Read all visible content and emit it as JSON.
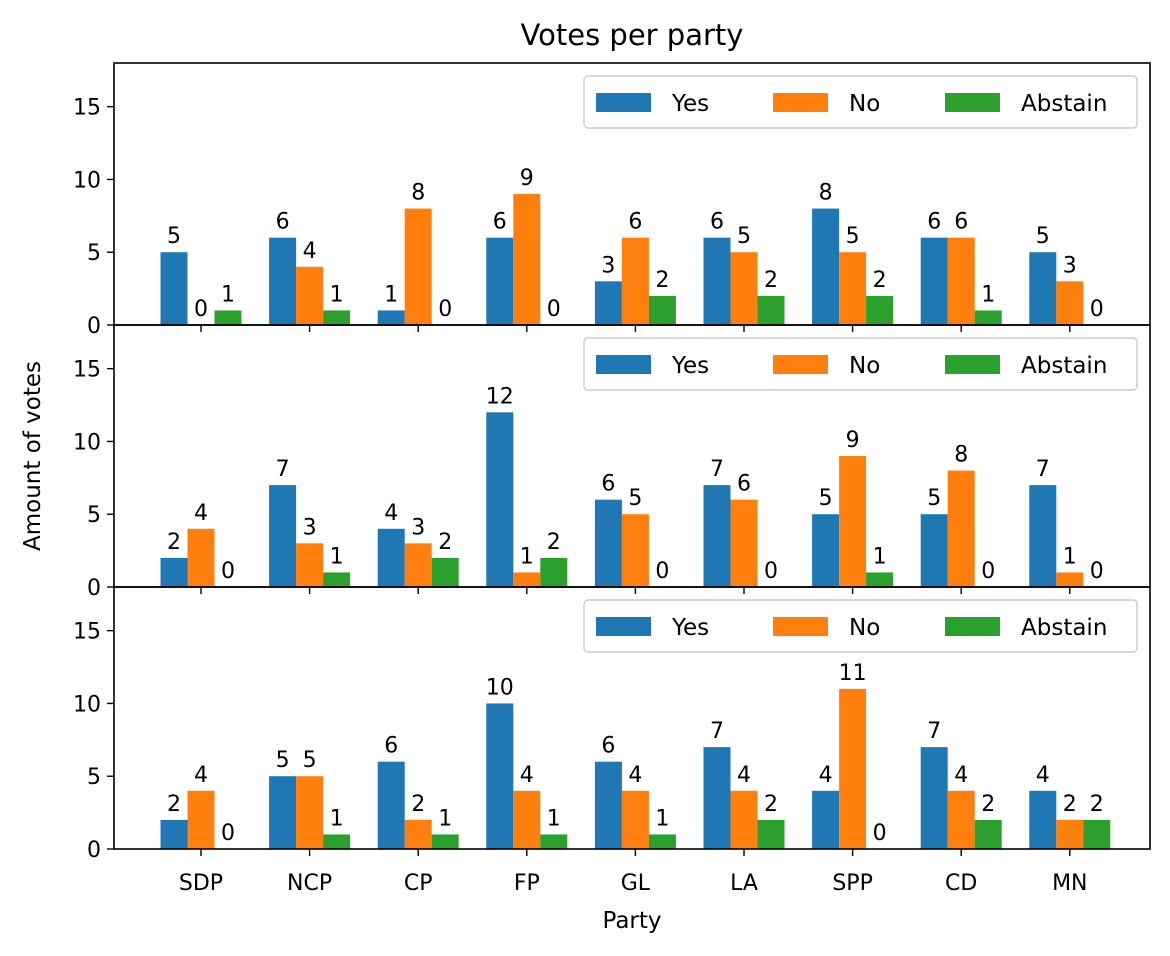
{
  "chart_data": {
    "type": "bar",
    "title": "Votes per party",
    "xlabel": "Party",
    "ylabel": "Amount of votes",
    "ylim": [
      0,
      18
    ],
    "yticks": [
      "0",
      "5",
      "10",
      "15"
    ],
    "categories": [
      "SDP",
      "NCP",
      "CP",
      "FP",
      "GL",
      "LA",
      "SPP",
      "CD",
      "MN"
    ],
    "legend_position": "top-right",
    "legend_columns": 3,
    "grid": false,
    "series_colors": {
      "Yes": "#1f77b4",
      "No": "#ff7f0e",
      "Abstain": "#2ca02c"
    },
    "panels": [
      {
        "series": [
          {
            "name": "Yes",
            "values": [
              5,
              6,
              1,
              6,
              3,
              6,
              8,
              6,
              5
            ]
          },
          {
            "name": "No",
            "values": [
              0,
              4,
              8,
              9,
              6,
              5,
              5,
              6,
              3
            ]
          },
          {
            "name": "Abstain",
            "values": [
              1,
              1,
              0,
              0,
              2,
              2,
              2,
              1,
              0
            ]
          }
        ]
      },
      {
        "series": [
          {
            "name": "Yes",
            "values": [
              2,
              7,
              4,
              12,
              6,
              7,
              5,
              5,
              7
            ]
          },
          {
            "name": "No",
            "values": [
              4,
              3,
              3,
              1,
              5,
              6,
              9,
              8,
              1
            ]
          },
          {
            "name": "Abstain",
            "values": [
              0,
              1,
              2,
              2,
              0,
              0,
              1,
              0,
              0
            ]
          }
        ]
      },
      {
        "series": [
          {
            "name": "Yes",
            "values": [
              2,
              5,
              6,
              10,
              6,
              7,
              4,
              7,
              4
            ]
          },
          {
            "name": "No",
            "values": [
              4,
              5,
              2,
              4,
              4,
              4,
              11,
              4,
              2
            ]
          },
          {
            "name": "Abstain",
            "values": [
              0,
              1,
              1,
              1,
              1,
              2,
              0,
              2,
              2
            ]
          }
        ]
      }
    ]
  }
}
